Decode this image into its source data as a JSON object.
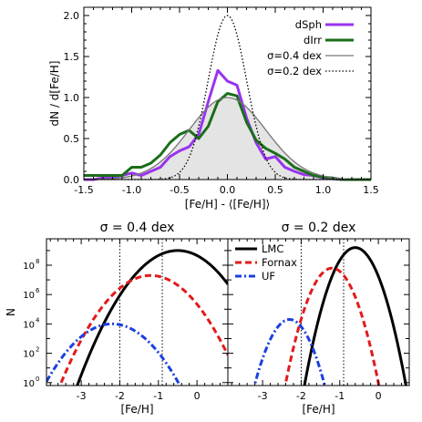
{
  "chart_data": [
    {
      "type": "line",
      "panel": "top",
      "title": "",
      "xlabel": "[Fe/H] - ⟨[Fe/H]⟩",
      "ylabel": "dN / d[Fe/H]",
      "xlim": [
        -1.5,
        1.5
      ],
      "ylim": [
        0,
        2.1
      ],
      "xticks": [
        -1.5,
        -1.0,
        -0.5,
        0.0,
        0.5,
        1.0,
        1.5
      ],
      "xtick_labels": [
        "-1.5",
        "-1.0",
        "-0.5",
        "0.0",
        "0.5",
        "1.0",
        "1.5"
      ],
      "yticks": [
        0.0,
        0.5,
        1.0,
        1.5,
        2.0
      ],
      "ytick_labels": [
        "0.0",
        "0.5",
        "1.0",
        "1.5",
        "2.0"
      ],
      "legend_position": "top-right",
      "series": [
        {
          "name": "dSph",
          "color": "#9933ee",
          "style": "step-thick",
          "x": [
            -1.5,
            -1.4,
            -1.3,
            -1.2,
            -1.1,
            -1.0,
            -0.9,
            -0.8,
            -0.7,
            -0.6,
            -0.5,
            -0.4,
            -0.3,
            -0.2,
            -0.1,
            0.0,
            0.1,
            0.2,
            0.3,
            0.4,
            0.5,
            0.6,
            0.7,
            0.8,
            0.9,
            1.0,
            1.1,
            1.2,
            1.3,
            1.4,
            1.5
          ],
          "y": [
            0.0,
            0.0,
            0.02,
            0.03,
            0.05,
            0.08,
            0.05,
            0.1,
            0.15,
            0.28,
            0.35,
            0.4,
            0.55,
            0.95,
            1.33,
            1.2,
            1.15,
            0.75,
            0.45,
            0.25,
            0.28,
            0.15,
            0.1,
            0.06,
            0.05,
            0.02,
            0.01,
            0.0,
            0.0,
            0.0,
            0.0
          ]
        },
        {
          "name": "dIrr",
          "color": "#1a6e1a",
          "style": "step-thick",
          "x": [
            -1.5,
            -1.4,
            -1.3,
            -1.2,
            -1.1,
            -1.0,
            -0.9,
            -0.8,
            -0.7,
            -0.6,
            -0.5,
            -0.4,
            -0.3,
            -0.2,
            -0.1,
            0.0,
            0.1,
            0.2,
            0.3,
            0.4,
            0.5,
            0.6,
            0.7,
            0.8,
            0.9,
            1.0,
            1.1,
            1.2,
            1.3,
            1.4,
            1.5
          ],
          "y": [
            0.05,
            0.05,
            0.05,
            0.05,
            0.05,
            0.15,
            0.15,
            0.2,
            0.3,
            0.45,
            0.55,
            0.6,
            0.5,
            0.65,
            0.95,
            1.05,
            1.02,
            0.7,
            0.48,
            0.38,
            0.32,
            0.25,
            0.15,
            0.1,
            0.05,
            0.03,
            0.02,
            0.0,
            0.0,
            0.0,
            0.0
          ]
        },
        {
          "name": "σ=0.4 dex",
          "color": "#777777",
          "style": "gauss",
          "sigma": 0.4,
          "amplitude": 1.0,
          "fill": "#e4e4e4"
        },
        {
          "name": "σ=0.2 dex",
          "color": "#000000",
          "style": "gauss-dotted",
          "sigma": 0.2,
          "amplitude": 2.0
        }
      ]
    },
    {
      "type": "line",
      "panel": "bottom-left",
      "title": "σ = 0.4 dex",
      "xlabel": "[Fe/H]",
      "ylabel": "N",
      "xlim": [
        -3.9,
        0.8
      ],
      "log_y": true,
      "ylim_log10": [
        -0.2,
        9.8
      ],
      "xticks": [
        -3,
        -2,
        -1,
        0
      ],
      "xtick_labels": [
        "-3",
        "-2",
        "-1",
        "0"
      ],
      "ytick_exponents": [
        0,
        2,
        4,
        6,
        8
      ],
      "ytick_labels": [
        "10",
        "10",
        "10",
        "10",
        "10"
      ],
      "vlines": [
        -2.0,
        -0.9
      ],
      "series": [
        {
          "name": "LMC",
          "color": "#000000",
          "style": "solid",
          "mu": -0.5,
          "sigma": 0.4,
          "log_norm": 9.0
        },
        {
          "name": "Fornax",
          "color": "#e21a1a",
          "style": "dashed",
          "mu": -1.2,
          "sigma": 0.4,
          "log_norm": 7.3
        },
        {
          "name": "UF",
          "color": "#1a3fe0",
          "style": "dashdot",
          "mu": -2.2,
          "sigma": 0.4,
          "log_norm": 4.0
        }
      ]
    },
    {
      "type": "line",
      "panel": "bottom-right",
      "title": "σ = 0.2 dex",
      "xlabel": "[Fe/H]",
      "xlim": [
        -3.9,
        0.8
      ],
      "log_y": true,
      "ylim_log10": [
        -0.2,
        9.8
      ],
      "xticks": [
        -3,
        -2,
        -1,
        0
      ],
      "xtick_labels": [
        "-3",
        "-2",
        "-1",
        "0"
      ],
      "vlines": [
        -2.0,
        -0.9
      ],
      "legend_position": "top-left",
      "series": [
        {
          "name": "LMC",
          "color": "#000000",
          "style": "solid",
          "mu": -0.6,
          "sigma": 0.2,
          "log_norm": 9.2
        },
        {
          "name": "Fornax",
          "color": "#e21a1a",
          "style": "dashed",
          "mu": -1.2,
          "sigma": 0.2,
          "log_norm": 7.8
        },
        {
          "name": "UF",
          "color": "#1a3fe0",
          "style": "dashdot",
          "mu": -2.3,
          "sigma": 0.2,
          "log_norm": 4.3
        }
      ]
    }
  ]
}
